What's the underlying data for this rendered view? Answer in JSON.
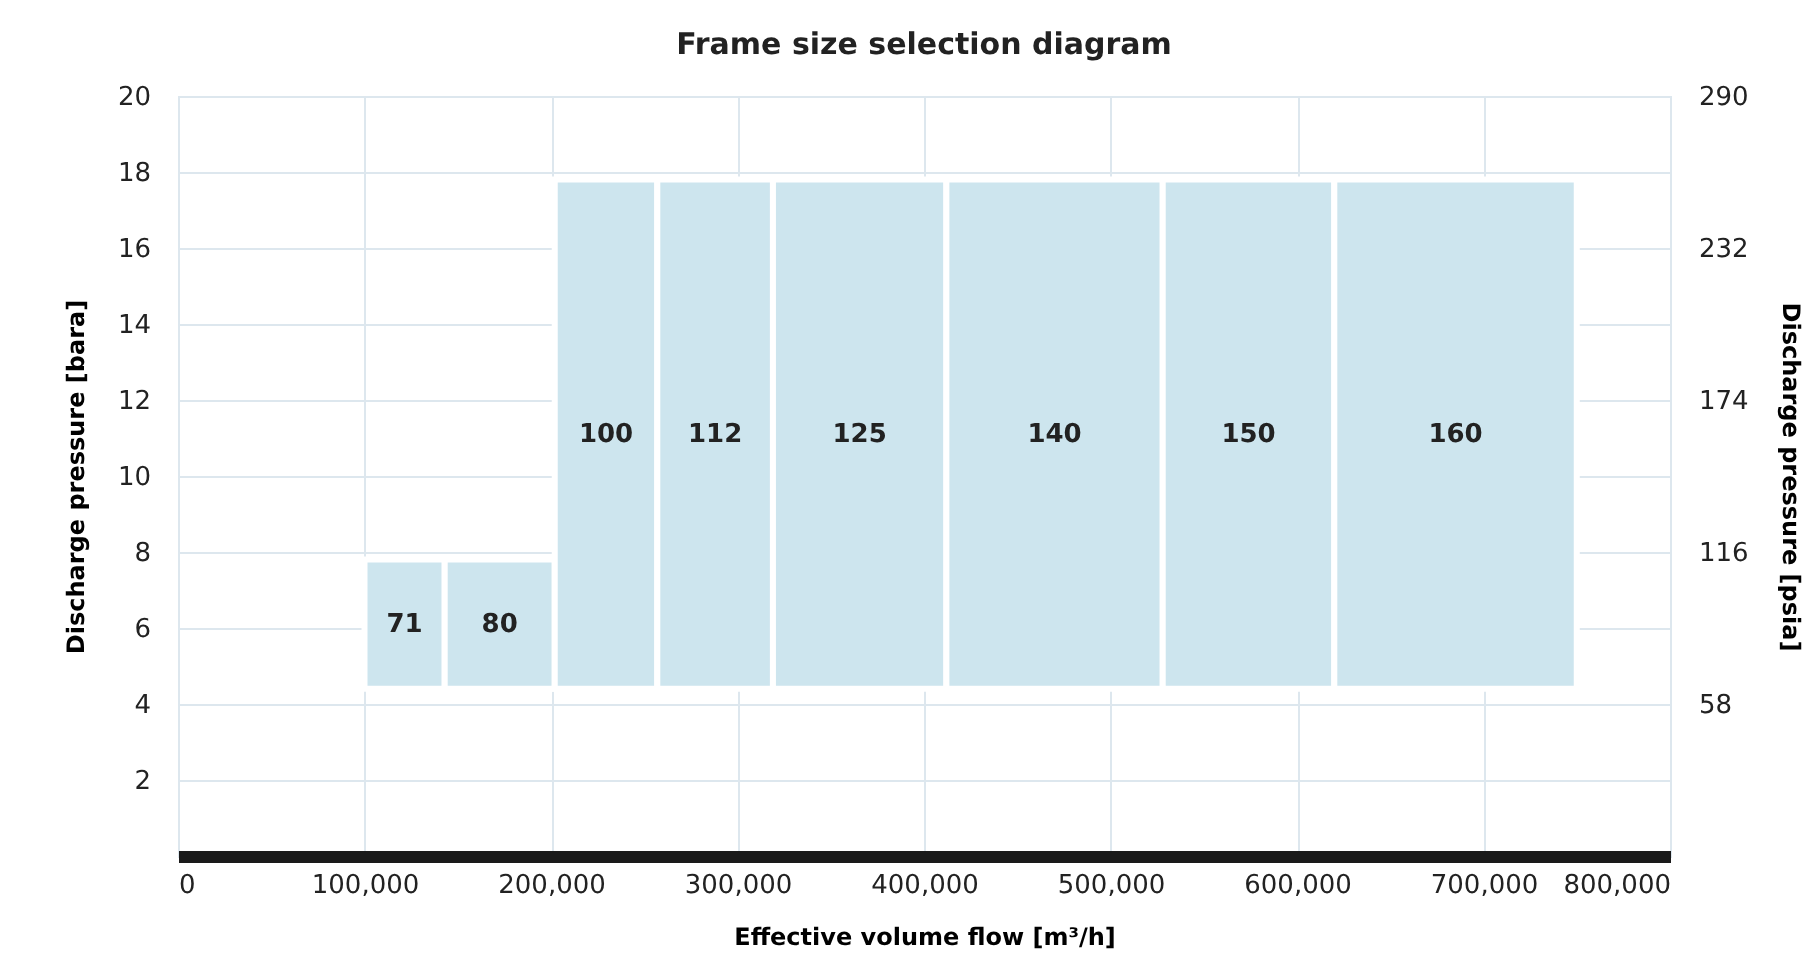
{
  "chart_data": {
    "type": "histogram",
    "title": "Frame size selection diagram",
    "xlabel": "Effective volume flow [m³/h]",
    "ylabel": "Discharge pressure [bara]",
    "y2label": "Discharge pressure [psia]",
    "bins": [
      100000,
      143000,
      202000,
      257000,
      319000,
      412000,
      528000,
      620000,
      750000
    ],
    "base": [
      4.4,
      4.4,
      4.4,
      4.4,
      4.4,
      4.4,
      4.4,
      4.4
    ],
    "values": [
      3.4,
      3.4,
      13.4,
      13.4,
      13.4,
      13.4,
      13.4,
      13.4
    ],
    "annotations": [
      "71",
      "80",
      "100",
      "112",
      "125",
      "140",
      "150",
      "160"
    ],
    "color": "#cde5ee",
    "xlim": [
      0,
      800000
    ],
    "xticks": [
      0,
      {
        "value": 100000,
        "label": "100,000"
      },
      {
        "value": 200000,
        "label": "200,000"
      },
      {
        "value": 300000,
        "label": "300,000"
      },
      {
        "value": 400000,
        "label": "400,000"
      },
      {
        "value": 500000,
        "label": "500,000"
      },
      {
        "value": 600000,
        "label": "600,000"
      },
      {
        "value": 700000,
        "label": "700,000"
      },
      {
        "value": 800000,
        "label": "800,000"
      }
    ],
    "ylim": [
      0,
      20
    ],
    "yticks": [
      2,
      4,
      6,
      8,
      10,
      12,
      14,
      16,
      18,
      20
    ],
    "y2lim": [
      0,
      290
    ],
    "y2ticks": [
      58,
      116,
      174,
      232,
      290
    ],
    "grid": true
  }
}
